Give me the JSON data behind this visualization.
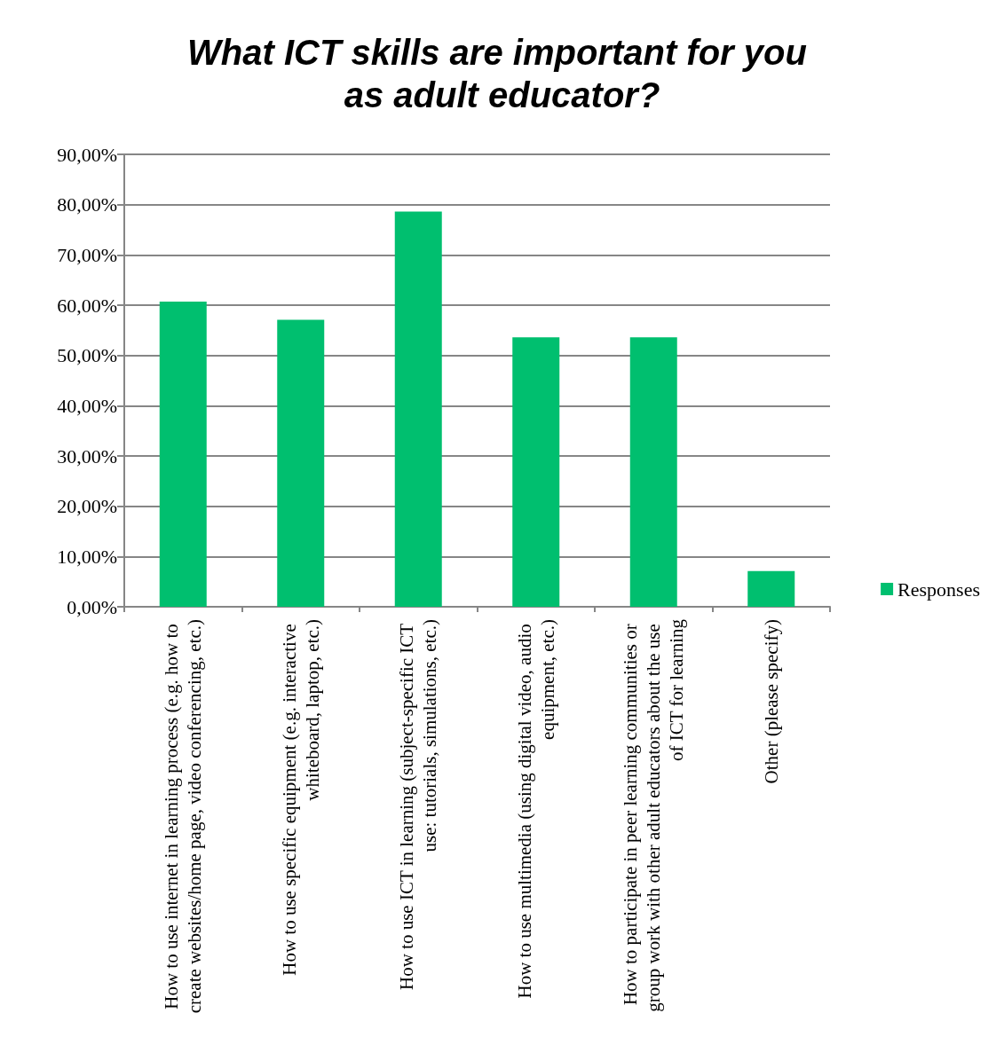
{
  "chart_data": {
    "type": "bar",
    "title": "What ICT skills are important for you as adult educator?",
    "categories": [
      "How to use internet in learning process (e.g. how to create websites/home page, video conferencing, etc.)",
      "How to use specific equipment (e.g. interactive whiteboard, laptop, etc.)",
      "How to use ICT in learning (subject-specific ICT use: tutorials, simulations, etc.)",
      "How to use multimedia (using digital video, audio equipment, etc.)",
      "How to participate in peer learning communities or group work with other adult educators about the use of ICT for learning",
      "Other (please specify)"
    ],
    "series": [
      {
        "name": "Responses",
        "color": "#00bf6f",
        "values": [
          60.7,
          57.1,
          78.6,
          53.6,
          53.6,
          7.1
        ]
      }
    ],
    "ylim": [
      0,
      90
    ],
    "yticks": [
      {
        "value": 0,
        "label": "0,00%"
      },
      {
        "value": 10,
        "label": "10,00%"
      },
      {
        "value": 20,
        "label": "20,00%"
      },
      {
        "value": 30,
        "label": "30,00%"
      },
      {
        "value": 40,
        "label": "40,00%"
      },
      {
        "value": 50,
        "label": "50,00%"
      },
      {
        "value": 60,
        "label": "60,00%"
      },
      {
        "value": 70,
        "label": "70,00%"
      },
      {
        "value": 80,
        "label": "80,00%"
      },
      {
        "value": 90,
        "label": "90,00%"
      }
    ],
    "grid": "y",
    "legend": "right"
  }
}
